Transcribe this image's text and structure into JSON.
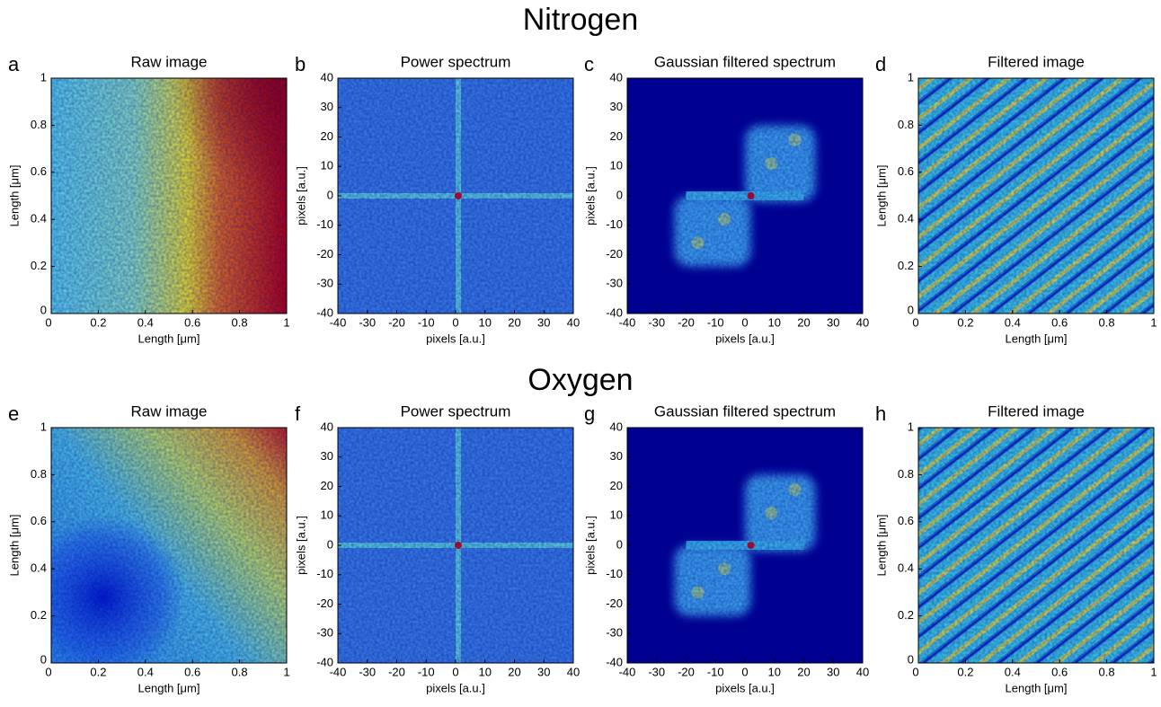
{
  "rows": [
    {
      "title": "Nitrogen",
      "panels": [
        {
          "letter": "a",
          "title": "Raw image",
          "xlabel": "Length [μm]",
          "ylabel": "Length [μm]",
          "xlim": [
            0,
            1
          ],
          "ylim": [
            0,
            1
          ],
          "xticks": [
            0,
            0.2,
            0.4,
            0.6,
            0.8,
            1
          ],
          "yticks": [
            0,
            0.2,
            0.4,
            0.6,
            0.8,
            1
          ]
        },
        {
          "letter": "b",
          "title": "Power spectrum",
          "xlabel": "pixels [a.u.]",
          "ylabel": "pixels [a.u.]",
          "xlim": [
            -40,
            40
          ],
          "ylim": [
            -40,
            40
          ],
          "xticks": [
            -40,
            -30,
            -20,
            -10,
            0,
            10,
            20,
            30,
            40
          ],
          "yticks": [
            -40,
            -30,
            -20,
            -10,
            0,
            10,
            20,
            30,
            40
          ]
        },
        {
          "letter": "c",
          "title": "Gaussian filtered spectrum",
          "xlabel": "pixels [a.u.]",
          "ylabel": "pixels [a.u.]",
          "xlim": [
            -40,
            40
          ],
          "ylim": [
            -40,
            40
          ],
          "xticks": [
            -40,
            -30,
            -20,
            -10,
            0,
            10,
            20,
            30,
            40
          ],
          "yticks": [
            -40,
            -30,
            -20,
            -10,
            0,
            10,
            20,
            30,
            40
          ]
        },
        {
          "letter": "d",
          "title": "Filtered image",
          "xlabel": "Length [μm]",
          "ylabel": "Length [μm]",
          "xlim": [
            0,
            1
          ],
          "ylim": [
            0,
            1
          ],
          "xticks": [
            0,
            0.2,
            0.4,
            0.6,
            0.8,
            1
          ],
          "yticks": [
            0,
            0.2,
            0.4,
            0.6,
            0.8,
            1
          ]
        }
      ]
    },
    {
      "title": "Oxygen",
      "panels": [
        {
          "letter": "e",
          "title": "Raw image",
          "xlabel": "Length [μm]",
          "ylabel": "Length [μm]",
          "xlim": [
            0,
            1
          ],
          "ylim": [
            0,
            1
          ],
          "xticks": [
            0,
            0.2,
            0.4,
            0.6,
            0.8,
            1
          ],
          "yticks": [
            0,
            0.2,
            0.4,
            0.6,
            0.8,
            1
          ]
        },
        {
          "letter": "f",
          "title": "Power spectrum",
          "xlabel": "pixels [a.u.]",
          "ylabel": "pixels [a.u.]",
          "xlim": [
            -40,
            40
          ],
          "ylim": [
            -40,
            40
          ],
          "xticks": [
            -40,
            -30,
            -20,
            -10,
            0,
            10,
            20,
            30,
            40
          ],
          "yticks": [
            -40,
            -30,
            -20,
            -10,
            0,
            10,
            20,
            30,
            40
          ]
        },
        {
          "letter": "g",
          "title": "Gaussian filtered spectrum",
          "xlabel": "pixels [a.u.]",
          "ylabel": "pixels [a.u.]",
          "xlim": [
            -40,
            40
          ],
          "ylim": [
            -40,
            40
          ],
          "xticks": [
            -40,
            -30,
            -20,
            -10,
            0,
            10,
            20,
            30,
            40
          ],
          "yticks": [
            -40,
            -30,
            -20,
            -10,
            0,
            10,
            20,
            30,
            40
          ]
        },
        {
          "letter": "h",
          "title": "Filtered image",
          "xlabel": "Length [μm]",
          "ylabel": "Length [μm]",
          "xlim": [
            0,
            1
          ],
          "ylim": [
            0,
            1
          ],
          "xticks": [
            0,
            0.2,
            0.4,
            0.6,
            0.8,
            1
          ],
          "yticks": [
            0,
            0.2,
            0.4,
            0.6,
            0.8,
            1
          ]
        }
      ]
    }
  ]
}
